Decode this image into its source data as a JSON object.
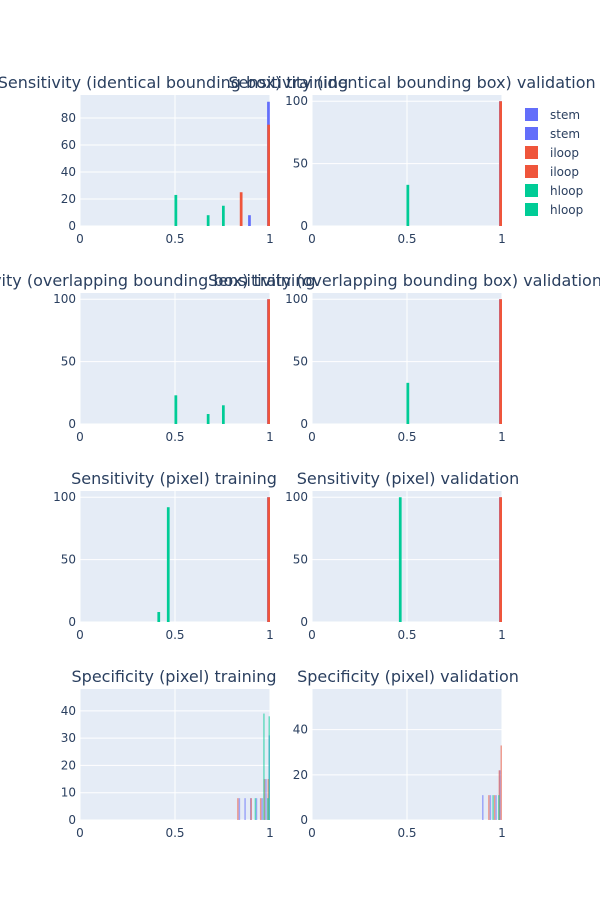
{
  "legend": [
    {
      "name": "stem",
      "color": "#636efa"
    },
    {
      "name": "stem",
      "color": "#636efa"
    },
    {
      "name": "iloop",
      "color": "#ef553b"
    },
    {
      "name": "iloop",
      "color": "#ef553b"
    },
    {
      "name": "hloop",
      "color": "#00cc96"
    },
    {
      "name": "hloop",
      "color": "#00cc96"
    }
  ],
  "chart_data": [
    {
      "type": "bar",
      "title": "Sensitivity (identical bounding box) training",
      "xlim": [
        0,
        1
      ],
      "ylim": [
        0,
        97
      ],
      "xticks": [
        0,
        0.5,
        1
      ],
      "xticklabels": [
        "0",
        "0.5",
        "1"
      ],
      "yticks": [
        0,
        20,
        40,
        60,
        80
      ],
      "yticklabels": [
        "0",
        "20",
        "40",
        "60",
        "80"
      ],
      "bar_width": 0.018,
      "alpha": 1,
      "series": [
        {
          "name": "stem",
          "color": "#636efa",
          "x": [
            0.9,
            1.0
          ],
          "y": [
            8,
            92
          ]
        },
        {
          "name": "iloop",
          "color": "#ef553b",
          "x": [
            0.85,
            1.0
          ],
          "y": [
            25,
            75
          ]
        },
        {
          "name": "hloop",
          "color": "#00cc96",
          "x": [
            0.5,
            0.67,
            0.75
          ],
          "y": [
            23,
            8,
            15
          ]
        }
      ]
    },
    {
      "type": "bar",
      "title": "Sensitivity (identical bounding box) validation",
      "xlim": [
        0,
        1
      ],
      "ylim": [
        0,
        105
      ],
      "xticks": [
        0,
        0.5,
        1
      ],
      "xticklabels": [
        "0",
        "0.5",
        "1"
      ],
      "yticks": [
        0,
        50,
        100
      ],
      "yticklabels": [
        "0",
        "50",
        "100"
      ],
      "bar_width": 0.018,
      "alpha": 1,
      "series": [
        {
          "name": "stem",
          "color": "#636efa",
          "x": [
            1.0
          ],
          "y": [
            100
          ]
        },
        {
          "name": "iloop",
          "color": "#ef553b",
          "x": [
            1.0
          ],
          "y": [
            100
          ]
        },
        {
          "name": "hloop",
          "color": "#00cc96",
          "x": [
            0.5
          ],
          "y": [
            33
          ]
        }
      ]
    },
    {
      "type": "bar",
      "title": "Sensitivity (overlapping bounding box) training",
      "xlim": [
        0,
        1
      ],
      "ylim": [
        0,
        105
      ],
      "xticks": [
        0,
        0.5,
        1
      ],
      "xticklabels": [
        "0",
        "0.5",
        "1"
      ],
      "yticks": [
        0,
        50,
        100
      ],
      "yticklabels": [
        "0",
        "50",
        "100"
      ],
      "bar_width": 0.018,
      "alpha": 1,
      "series": [
        {
          "name": "stem",
          "color": "#636efa",
          "x": [
            1.0
          ],
          "y": [
            100
          ]
        },
        {
          "name": "iloop",
          "color": "#ef553b",
          "x": [
            1.0
          ],
          "y": [
            100
          ]
        },
        {
          "name": "hloop",
          "color": "#00cc96",
          "x": [
            0.5,
            0.67,
            0.75
          ],
          "y": [
            23,
            8,
            15
          ]
        }
      ]
    },
    {
      "type": "bar",
      "title": "Sensitivity (overlapping bounding box) validation",
      "xlim": [
        0,
        1
      ],
      "ylim": [
        0,
        105
      ],
      "xticks": [
        0,
        0.5,
        1
      ],
      "xticklabels": [
        "0",
        "0.5",
        "1"
      ],
      "yticks": [
        0,
        50,
        100
      ],
      "yticklabels": [
        "0",
        "50",
        "100"
      ],
      "bar_width": 0.018,
      "alpha": 1,
      "series": [
        {
          "name": "stem",
          "color": "#636efa",
          "x": [
            1.0
          ],
          "y": [
            100
          ]
        },
        {
          "name": "iloop",
          "color": "#ef553b",
          "x": [
            1.0
          ],
          "y": [
            100
          ]
        },
        {
          "name": "hloop",
          "color": "#00cc96",
          "x": [
            0.5
          ],
          "y": [
            33
          ]
        }
      ]
    },
    {
      "type": "bar",
      "title": "Sensitivity (pixel) training",
      "xlim": [
        0,
        1
      ],
      "ylim": [
        0,
        105
      ],
      "xticks": [
        0,
        0.5,
        1
      ],
      "xticklabels": [
        "0",
        "0.5",
        "1"
      ],
      "yticks": [
        0,
        50,
        100
      ],
      "yticklabels": [
        "0",
        "50",
        "100"
      ],
      "bar_width": 0.018,
      "alpha": 1,
      "series": [
        {
          "name": "stem",
          "color": "#636efa",
          "x": [
            1.0
          ],
          "y": [
            100
          ]
        },
        {
          "name": "iloop",
          "color": "#ef553b",
          "x": [
            1.0
          ],
          "y": [
            100
          ]
        },
        {
          "name": "hloop",
          "color": "#00cc96",
          "x": [
            0.41,
            0.46
          ],
          "y": [
            8,
            92
          ]
        }
      ]
    },
    {
      "type": "bar",
      "title": "Sensitivity (pixel) validation",
      "xlim": [
        0,
        1
      ],
      "ylim": [
        0,
        105
      ],
      "xticks": [
        0,
        0.5,
        1
      ],
      "xticklabels": [
        "0",
        "0.5",
        "1"
      ],
      "yticks": [
        0,
        50,
        100
      ],
      "yticklabels": [
        "0",
        "50",
        "100"
      ],
      "bar_width": 0.018,
      "alpha": 1,
      "series": [
        {
          "name": "stem",
          "color": "#636efa",
          "x": [
            1.0
          ],
          "y": [
            100
          ]
        },
        {
          "name": "iloop",
          "color": "#ef553b",
          "x": [
            1.0
          ],
          "y": [
            100
          ]
        },
        {
          "name": "hloop",
          "color": "#00cc96",
          "x": [
            0.46
          ],
          "y": [
            100
          ]
        }
      ]
    },
    {
      "type": "bar",
      "title": "Specificity (pixel) training",
      "xlim": [
        0,
        1
      ],
      "ylim": [
        0,
        48
      ],
      "xticks": [
        0,
        0.5,
        1
      ],
      "xticklabels": [
        "0",
        "0.5",
        "1"
      ],
      "yticks": [
        0,
        10,
        20,
        30,
        40
      ],
      "yticklabels": [
        "0",
        "10",
        "20",
        "30",
        "40"
      ],
      "bar_width": 0.006,
      "alpha": 0.55,
      "series": [
        {
          "name": "stem",
          "color": "#636efa",
          "x": [
            0.84,
            0.87,
            0.9,
            0.93,
            0.96,
            0.98,
            1.0
          ],
          "y": [
            8,
            8,
            8,
            8,
            8,
            15,
            31
          ]
        },
        {
          "name": "iloop",
          "color": "#ef553b",
          "x": [
            0.83,
            0.9,
            0.95,
            0.97,
            0.99
          ],
          "y": [
            8,
            8,
            8,
            15,
            15
          ]
        },
        {
          "name": "hloop",
          "color": "#00cc96",
          "x": [
            0.92,
            0.965,
            0.985,
            1.0
          ],
          "y": [
            8,
            39,
            8,
            38
          ]
        }
      ]
    },
    {
      "type": "bar",
      "title": "Specificity (pixel) validation",
      "xlim": [
        0,
        1
      ],
      "ylim": [
        0,
        58
      ],
      "xticks": [
        0,
        0.5,
        1
      ],
      "xticklabels": [
        "0",
        "0.5",
        "1"
      ],
      "yticks": [
        0,
        20,
        40
      ],
      "yticklabels": [
        "0",
        "20",
        "40"
      ],
      "bar_width": 0.006,
      "alpha": 0.55,
      "series": [
        {
          "name": "stem",
          "color": "#636efa",
          "x": [
            0.9,
            0.94,
            0.97,
            0.99
          ],
          "y": [
            11,
            11,
            11,
            22
          ]
        },
        {
          "name": "iloop",
          "color": "#ef553b",
          "x": [
            0.93,
            0.96,
            0.985,
            1.0
          ],
          "y": [
            11,
            11,
            22,
            33
          ]
        },
        {
          "name": "hloop",
          "color": "#00cc96",
          "x": [
            0.95,
            0.98
          ],
          "y": [
            11,
            11
          ]
        }
      ]
    }
  ]
}
